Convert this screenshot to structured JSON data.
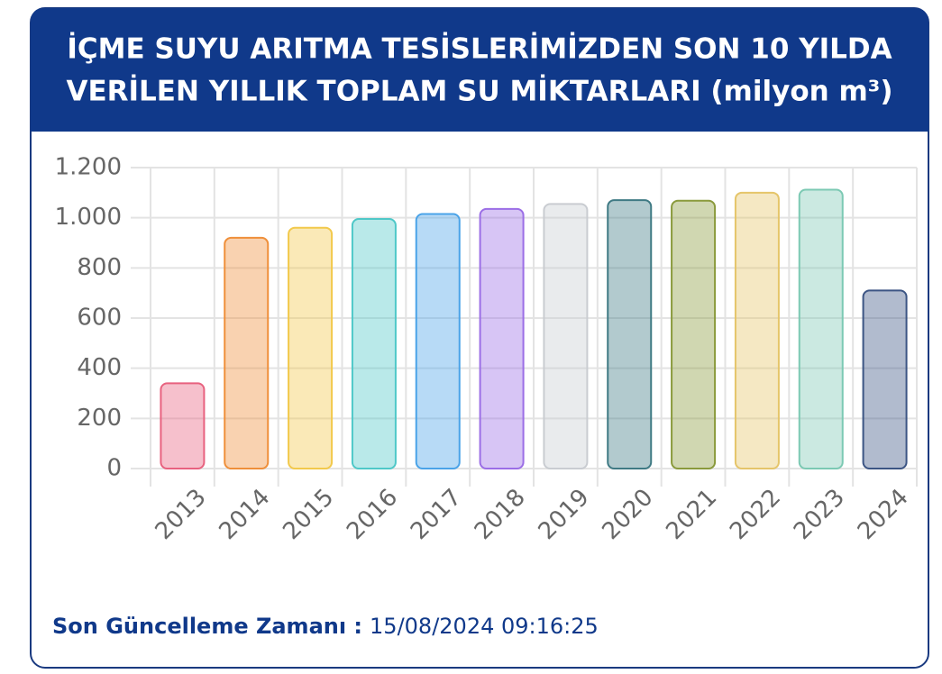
{
  "chart_data": {
    "type": "bar",
    "title": [
      "İÇME SUYU ARITMA TESİSLERİMİZDEN SON 10 YILDA",
      "VERİLEN YILLIK TOPLAM SU MİKTARLARI (milyon m³)"
    ],
    "categories": [
      "2013",
      "2014",
      "2015",
      "2016",
      "2017",
      "2018",
      "2019",
      "2020",
      "2021",
      "2022",
      "2023",
      "2024"
    ],
    "values": [
      340,
      920,
      960,
      995,
      1015,
      1035,
      1055,
      1070,
      1068,
      1100,
      1112,
      710
    ],
    "colors": [
      "#e8627f",
      "#ef8f3a",
      "#f2c94c",
      "#4fc8c8",
      "#4aa3e8",
      "#9b6ee6",
      "#c9ccd1",
      "#3f7a84",
      "#8a9a3c",
      "#e5c56a",
      "#7cc9b3",
      "#3c5584"
    ],
    "ylim": [
      0,
      1200
    ],
    "yticks": [
      0,
      200,
      400,
      600,
      800,
      {
        "value": 1000,
        "label": "1.000"
      },
      {
        "value": 1200,
        "label": "1.200"
      }
    ],
    "grid": true
  },
  "footer": {
    "label": "Son Güncelleme Zamanı :",
    "value": "15/08/2024 09:16:25"
  }
}
